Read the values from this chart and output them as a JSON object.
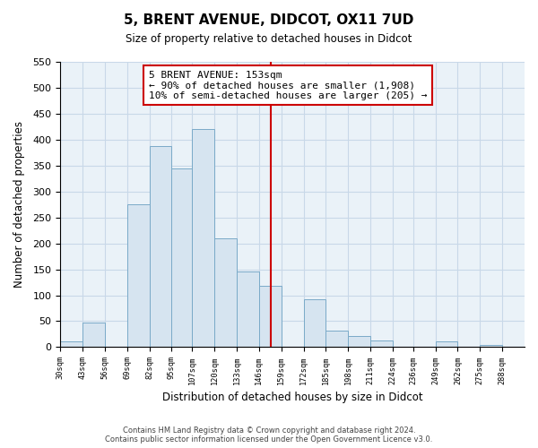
{
  "title": "5, BRENT AVENUE, DIDCOT, OX11 7UD",
  "subtitle": "Size of property relative to detached houses in Didcot",
  "xlabel": "Distribution of detached houses by size in Didcot",
  "ylabel": "Number of detached properties",
  "bar_edges": [
    30,
    43,
    56,
    69,
    82,
    95,
    107,
    120,
    133,
    146,
    159,
    172,
    185,
    198,
    211,
    224,
    236,
    249,
    262,
    275,
    288,
    301
  ],
  "bar_heights": [
    11,
    48,
    0,
    275,
    388,
    345,
    420,
    210,
    145,
    118,
    0,
    92,
    32,
    22,
    12,
    0,
    0,
    11,
    0,
    4,
    0
  ],
  "bar_color": "#d6e4f0",
  "bar_edgecolor": "#7aaac8",
  "vline_x": 153,
  "vline_color": "#cc0000",
  "ylim": [
    0,
    550
  ],
  "annotation_title": "5 BRENT AVENUE: 153sqm",
  "annotation_line1": "← 90% of detached houses are smaller (1,908)",
  "annotation_line2": "10% of semi-detached houses are larger (205) →",
  "annotation_box_color": "#ffffff",
  "annotation_border_color": "#cc0000",
  "footer_line1": "Contains HM Land Registry data © Crown copyright and database right 2024.",
  "footer_line2": "Contains public sector information licensed under the Open Government Licence v3.0.",
  "tick_labels": [
    "30sqm",
    "43sqm",
    "56sqm",
    "69sqm",
    "82sqm",
    "95sqm",
    "107sqm",
    "120sqm",
    "133sqm",
    "146sqm",
    "159sqm",
    "172sqm",
    "185sqm",
    "198sqm",
    "211sqm",
    "224sqm",
    "236sqm",
    "249sqm",
    "262sqm",
    "275sqm",
    "288sqm"
  ],
  "yticks": [
    0,
    50,
    100,
    150,
    200,
    250,
    300,
    350,
    400,
    450,
    500,
    550
  ],
  "grid_color": "#c8d8e8",
  "bg_color": "#eaf2f8"
}
